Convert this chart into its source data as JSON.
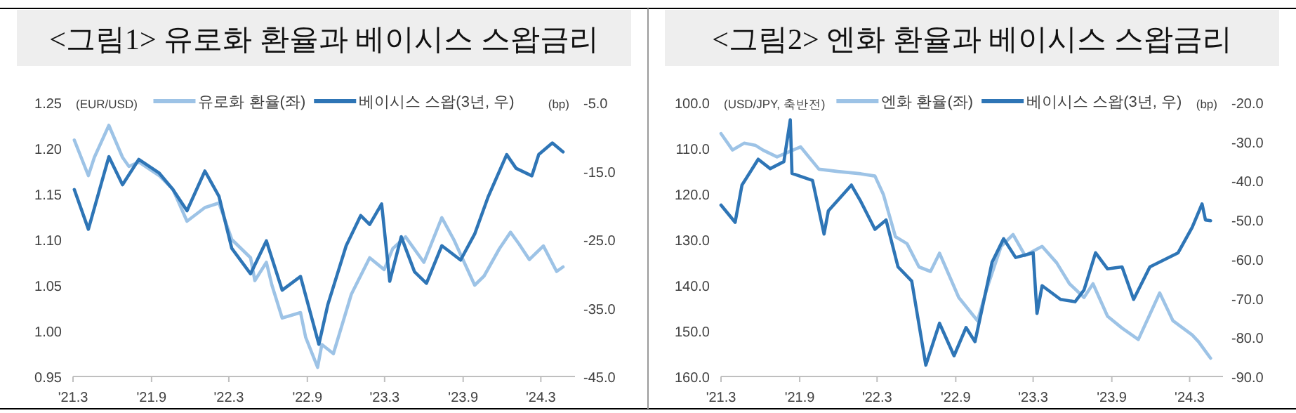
{
  "chart_data": [
    {
      "type": "line",
      "title": "<그림1> 유로화 환율과 베이시스 스왑금리",
      "ylabel": "(EUR/USD)",
      "y2label": "(bp)",
      "legend": "top",
      "line_style": "solid",
      "marker": "none",
      "xlim": [
        "2021-03-01",
        "2024-05-20"
      ],
      "xticks": [
        {
          "value": "2021-03-01",
          "label": "'21.3"
        },
        {
          "value": "2021-09-01",
          "label": "'21.9"
        },
        {
          "value": "2022-03-01",
          "label": "'22.3"
        },
        {
          "value": "2022-09-01",
          "label": "'22.9"
        },
        {
          "value": "2023-03-01",
          "label": "'23.3"
        },
        {
          "value": "2023-09-01",
          "label": "'23.9"
        },
        {
          "value": "2024-03-01",
          "label": "'24.3"
        }
      ],
      "ylim": [
        0.95,
        1.25
      ],
      "yticks": [
        {
          "value": 0.95,
          "label": "0.95"
        },
        {
          "value": 1.0,
          "label": "1.00"
        },
        {
          "value": 1.05,
          "label": "1.05"
        },
        {
          "value": 1.1,
          "label": "1.10"
        },
        {
          "value": 1.15,
          "label": "1.15"
        },
        {
          "value": 1.2,
          "label": "1.20"
        },
        {
          "value": 1.25,
          "label": "1.25"
        }
      ],
      "y2lim": [
        -45,
        -5
      ],
      "y2ticks": [
        {
          "value": -45,
          "label": "-45.0"
        },
        {
          "value": -35,
          "label": "-35.0"
        },
        {
          "value": -25,
          "label": "-25.0"
        },
        {
          "value": -15,
          "label": "-15.0"
        },
        {
          "value": -5,
          "label": "-5.0"
        }
      ],
      "series": [
        {
          "name": "유로화 환율(좌)",
          "color": "#9dc3e6",
          "x": [
            "2021-03-04",
            "2021-04-06",
            "2021-04-20",
            "2021-05-24",
            "2021-06-25",
            "2021-07-10",
            "2021-08-02",
            "2021-09-19",
            "2021-10-21",
            "2021-11-23",
            "2022-01-04",
            "2022-02-06",
            "2022-03-08",
            "2022-04-21",
            "2022-05-01",
            "2022-05-28",
            "2022-06-10",
            "2022-07-04",
            "2022-08-16",
            "2022-08-28",
            "2022-09-25",
            "2022-10-05",
            "2022-11-01",
            "2022-12-13",
            "2023-01-25",
            "2023-02-28",
            "2023-03-20",
            "2023-04-19",
            "2023-06-01",
            "2023-07-13",
            "2023-08-10",
            "2023-09-28",
            "2023-10-20",
            "2023-11-25",
            "2023-12-21",
            "2024-01-10",
            "2024-02-03",
            "2024-03-07",
            "2024-04-07",
            "2024-04-22"
          ],
          "values": [
            1.209,
            1.17,
            1.19,
            1.225,
            1.19,
            1.18,
            1.185,
            1.17,
            1.155,
            1.12,
            1.135,
            1.14,
            1.1,
            1.08,
            1.055,
            1.075,
            1.05,
            1.014,
            1.02,
            0.993,
            0.96,
            0.985,
            0.975,
            1.04,
            1.08,
            1.067,
            1.09,
            1.103,
            1.075,
            1.124,
            1.1,
            1.05,
            1.06,
            1.09,
            1.108,
            1.095,
            1.078,
            1.093,
            1.065,
            1.07
          ]
        },
        {
          "name": "베이시스 스왑(3년, 우)",
          "color": "#2e75b6",
          "axis": "y2",
          "x": [
            "2021-03-04",
            "2021-04-06",
            "2021-05-24",
            "2021-06-25",
            "2021-08-02",
            "2021-09-19",
            "2021-10-21",
            "2021-11-23",
            "2022-01-04",
            "2022-02-06",
            "2022-03-08",
            "2022-04-21",
            "2022-05-28",
            "2022-07-04",
            "2022-08-16",
            "2022-09-28",
            "2022-10-19",
            "2022-12-01",
            "2023-01-04",
            "2023-01-25",
            "2023-02-22",
            "2023-03-13",
            "2023-04-09",
            "2023-05-10",
            "2023-06-07",
            "2023-07-13",
            "2023-08-26",
            "2023-09-28",
            "2023-10-30",
            "2023-12-12",
            "2024-01-03",
            "2024-02-09",
            "2024-02-25",
            "2024-03-28",
            "2024-04-22"
          ],
          "values": [
            -17.7,
            -23.5,
            -12.9,
            -17,
            -13.3,
            -15.3,
            -17.7,
            -20.8,
            -15,
            -18.7,
            -26.3,
            -30,
            -25.2,
            -32.4,
            -30.4,
            -40.3,
            -34.5,
            -25.9,
            -21.5,
            -22.8,
            -19.8,
            -31.1,
            -24.6,
            -29.7,
            -31.4,
            -25.9,
            -28,
            -24.2,
            -18.7,
            -12.6,
            -14.6,
            -15.7,
            -12.6,
            -10.9,
            -12.2
          ]
        }
      ]
    },
    {
      "type": "line",
      "title": "<그림2> 엔화 환율과 베이시스 스왑금리",
      "ylabel": "(USD/JPY, 축반전)",
      "y2label": "(bp)",
      "legend": "top",
      "line_style": "solid",
      "marker": "none",
      "xlim": [
        "2021-03-01",
        "2024-05-18"
      ],
      "xticks": [
        {
          "value": "2021-03-01",
          "label": "'21.3"
        },
        {
          "value": "2021-09-01",
          "label": "'21.9"
        },
        {
          "value": "2022-03-01",
          "label": "'22.3"
        },
        {
          "value": "2022-09-01",
          "label": "'22.9"
        },
        {
          "value": "2023-03-01",
          "label": "'23.3"
        },
        {
          "value": "2023-09-01",
          "label": "'23.9"
        },
        {
          "value": "2024-03-01",
          "label": "'24.3"
        }
      ],
      "ylim": [
        160,
        100
      ],
      "yticks": [
        {
          "value": 100,
          "label": "100.0"
        },
        {
          "value": 110,
          "label": "110.0"
        },
        {
          "value": 120,
          "label": "120.0"
        },
        {
          "value": 130,
          "label": "130.0"
        },
        {
          "value": 140,
          "label": "140.0"
        },
        {
          "value": 150,
          "label": "150.0"
        },
        {
          "value": 160,
          "label": "160.0"
        }
      ],
      "y2lim": [
        -90,
        -20
      ],
      "y2ticks": [
        {
          "value": -90,
          "label": "-90.0"
        },
        {
          "value": -80,
          "label": "-80.0"
        },
        {
          "value": -70,
          "label": "-70.0"
        },
        {
          "value": -60,
          "label": "-60.0"
        },
        {
          "value": -50,
          "label": "-50.0"
        },
        {
          "value": -40,
          "label": "-40.0"
        },
        {
          "value": -30,
          "label": "-30.0"
        },
        {
          "value": -20,
          "label": "-20.0"
        }
      ],
      "series": [
        {
          "name": "엔화 환율(좌)",
          "color": "#9dc3e6",
          "x": [
            "2021-03-01",
            "2021-03-28",
            "2021-04-24",
            "2021-05-21",
            "2021-06-07",
            "2021-07-10",
            "2021-09-03",
            "2021-10-16",
            "2021-11-29",
            "2022-01-22",
            "2022-02-24",
            "2022-03-16",
            "2022-04-13",
            "2022-05-10",
            "2022-06-07",
            "2022-07-04",
            "2022-07-25",
            "2022-09-08",
            "2022-10-22",
            "2022-11-13",
            "2022-12-16",
            "2023-01-13",
            "2023-02-10",
            "2023-03-22",
            "2023-04-25",
            "2023-05-25",
            "2023-06-28",
            "2023-07-19",
            "2023-08-22",
            "2023-09-25",
            "2023-11-02",
            "2023-12-22",
            "2024-01-22",
            "2024-03-07",
            "2024-03-22",
            "2024-04-19"
          ],
          "values": [
            106.8,
            110.4,
            108.9,
            109.4,
            110.4,
            111.9,
            109.7,
            114.6,
            115.1,
            115.6,
            116.1,
            120.2,
            129.4,
            130.9,
            136,
            137,
            133,
            142.7,
            147.8,
            140.7,
            131.5,
            128.9,
            133.5,
            131.5,
            135.1,
            139.7,
            142.7,
            139.7,
            146.8,
            149.4,
            151.9,
            141.7,
            147.8,
            150.9,
            152.4,
            156
          ]
        },
        {
          "name": "베이시스 스왑(3년, 우)",
          "color": "#2e75b6",
          "axis": "y2",
          "x": [
            "2021-03-01",
            "2021-04-03",
            "2021-04-19",
            "2021-05-27",
            "2021-06-24",
            "2021-07-26",
            "2021-08-10",
            "2021-08-14",
            "2021-10-01",
            "2021-10-28",
            "2021-11-07",
            "2021-12-31",
            "2022-01-22",
            "2022-02-24",
            "2022-03-22",
            "2022-04-19",
            "2022-05-21",
            "2022-06-23",
            "2022-07-25",
            "2022-08-28",
            "2022-09-25",
            "2022-10-16",
            "2022-11-25",
            "2022-12-22",
            "2023-01-19",
            "2023-03-01",
            "2023-03-10",
            "2023-03-22",
            "2023-05-04",
            "2023-06-07",
            "2023-06-28",
            "2023-07-25",
            "2023-08-22",
            "2023-09-25",
            "2023-10-22",
            "2023-11-29",
            "2024-01-01",
            "2024-02-03",
            "2024-03-07",
            "2024-03-30",
            "2024-04-07",
            "2024-04-19"
          ],
          "values": [
            -46.2,
            -50.6,
            -41.1,
            -34.5,
            -36.9,
            -35.1,
            -24.4,
            -38.1,
            -39.9,
            -53.6,
            -47.7,
            -41.1,
            -45.3,
            -52.4,
            -50,
            -62,
            -65.6,
            -87.1,
            -76.4,
            -84.7,
            -77.5,
            -81.1,
            -60.8,
            -54.8,
            -59.6,
            -58.4,
            -73.9,
            -66.8,
            -70.3,
            -70.9,
            -67.9,
            -58.4,
            -62.5,
            -62,
            -70.3,
            -62,
            -60.2,
            -58.4,
            -51.9,
            -45.9,
            -50,
            -50.2
          ]
        }
      ]
    }
  ]
}
